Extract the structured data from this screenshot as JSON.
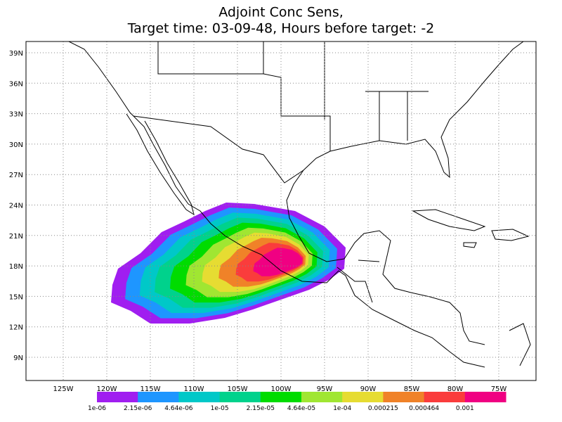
{
  "title": [
    "Adjoint Conc Sens,",
    "Target time: 03-09-48, Hours before target: -2"
  ],
  "lat_labels": [
    "39N",
    "36N",
    "33N",
    "30N",
    "27N",
    "24N",
    "21N",
    "18N",
    "15N",
    "12N",
    "9N"
  ],
  "lon_labels": [
    "125W",
    "120W",
    "115W",
    "110W",
    "105W",
    "100W",
    "95W",
    "90W",
    "85W",
    "80W",
    "75W"
  ],
  "colorbar": {
    "colors": [
      "#a01ef0",
      "#1e96ff",
      "#00c8c8",
      "#00d28c",
      "#00dc00",
      "#a0e632",
      "#e6dc32",
      "#f08228",
      "#fa3c3c",
      "#f00082"
    ],
    "labels": [
      "1e-06",
      "2.15e-06",
      "4.64e-06",
      "1e-05",
      "2.15e-05",
      "4.64e-05",
      "1e-04",
      "0.000215",
      "0.000464",
      "0.001"
    ]
  }
}
